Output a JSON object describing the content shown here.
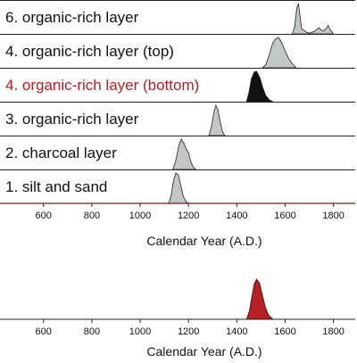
{
  "chart_data": [
    {
      "type": "area",
      "xlabel": "Calendar Year (A.D.)",
      "xlim": [
        420,
        1890
      ],
      "x_ticks": [
        600,
        800,
        1000,
        1200,
        1400,
        1600,
        1800
      ],
      "layers": [
        {
          "label": "6. organic-rich layer",
          "label_color": "#111111",
          "fill": "#c3c6c6",
          "points": [
            [
              1630,
              0.0
            ],
            [
              1640,
              0.25
            ],
            [
              1648,
              0.85
            ],
            [
              1655,
              1.0
            ],
            [
              1660,
              0.7
            ],
            [
              1668,
              0.18
            ],
            [
              1690,
              0.05
            ],
            [
              1700,
              0.02
            ],
            [
              1720,
              0.08
            ],
            [
              1740,
              0.2
            ],
            [
              1750,
              0.12
            ],
            [
              1760,
              0.1
            ],
            [
              1770,
              0.18
            ],
            [
              1778,
              0.28
            ],
            [
              1786,
              0.15
            ],
            [
              1800,
              0.0
            ]
          ]
        },
        {
          "label": "4. organic-rich layer (top)",
          "label_color": "#111111",
          "fill": "#c3c6c6",
          "points": [
            [
              1505,
              0.0
            ],
            [
              1520,
              0.1
            ],
            [
              1535,
              0.45
            ],
            [
              1548,
              0.8
            ],
            [
              1560,
              0.95
            ],
            [
              1572,
              1.0
            ],
            [
              1585,
              0.85
            ],
            [
              1600,
              0.55
            ],
            [
              1615,
              0.3
            ],
            [
              1628,
              0.15
            ],
            [
              1645,
              0.0
            ]
          ]
        },
        {
          "label": "4. organic-rich layer (bottom)",
          "label_color": "#b52025",
          "fill": "#111111",
          "points": [
            [
              1440,
              0.0
            ],
            [
              1450,
              0.3
            ],
            [
              1460,
              0.75
            ],
            [
              1472,
              0.98
            ],
            [
              1482,
              1.0
            ],
            [
              1495,
              0.8
            ],
            [
              1508,
              0.45
            ],
            [
              1520,
              0.2
            ],
            [
              1535,
              0.06
            ],
            [
              1550,
              0.0
            ]
          ]
        },
        {
          "label": "3. organic-rich layer",
          "label_color": "#111111",
          "fill": "#c3c6c6",
          "points": [
            [
              1285,
              0.0
            ],
            [
              1295,
              0.3
            ],
            [
              1305,
              0.75
            ],
            [
              1313,
              1.0
            ],
            [
              1322,
              0.85
            ],
            [
              1330,
              0.5
            ],
            [
              1340,
              0.15
            ],
            [
              1350,
              0.0
            ]
          ]
        },
        {
          "label": "2. charcoal layer",
          "label_color": "#111111",
          "fill": "#c3c6c6",
          "points": [
            [
              1135,
              0.0
            ],
            [
              1148,
              0.3
            ],
            [
              1160,
              0.8
            ],
            [
              1170,
              1.0
            ],
            [
              1182,
              0.85
            ],
            [
              1192,
              0.65
            ],
            [
              1200,
              0.55
            ],
            [
              1210,
              0.25
            ],
            [
              1220,
              0.08
            ],
            [
              1230,
              0.0
            ]
          ]
        },
        {
          "label": "1. silt and sand",
          "label_color": "#111111",
          "fill": "#c3c6c6",
          "points": [
            [
              1118,
              0.0
            ],
            [
              1128,
              0.25
            ],
            [
              1138,
              0.75
            ],
            [
              1148,
              1.0
            ],
            [
              1158,
              0.95
            ],
            [
              1168,
              0.6
            ],
            [
              1178,
              0.25
            ],
            [
              1190,
              0.06
            ],
            [
              1200,
              0.0
            ]
          ]
        }
      ]
    },
    {
      "type": "area",
      "xlabel": "Calendar Year (A.D.)",
      "xlim": [
        420,
        1890
      ],
      "x_ticks": [
        600,
        800,
        1000,
        1200,
        1400,
        1600,
        1800
      ],
      "fill": "#b52025",
      "points": [
        [
          1440,
          0.0
        ],
        [
          1452,
          0.2
        ],
        [
          1462,
          0.55
        ],
        [
          1472,
          0.88
        ],
        [
          1482,
          1.0
        ],
        [
          1494,
          0.9
        ],
        [
          1506,
          0.6
        ],
        [
          1518,
          0.3
        ],
        [
          1532,
          0.1
        ],
        [
          1550,
          0.0
        ]
      ]
    }
  ]
}
